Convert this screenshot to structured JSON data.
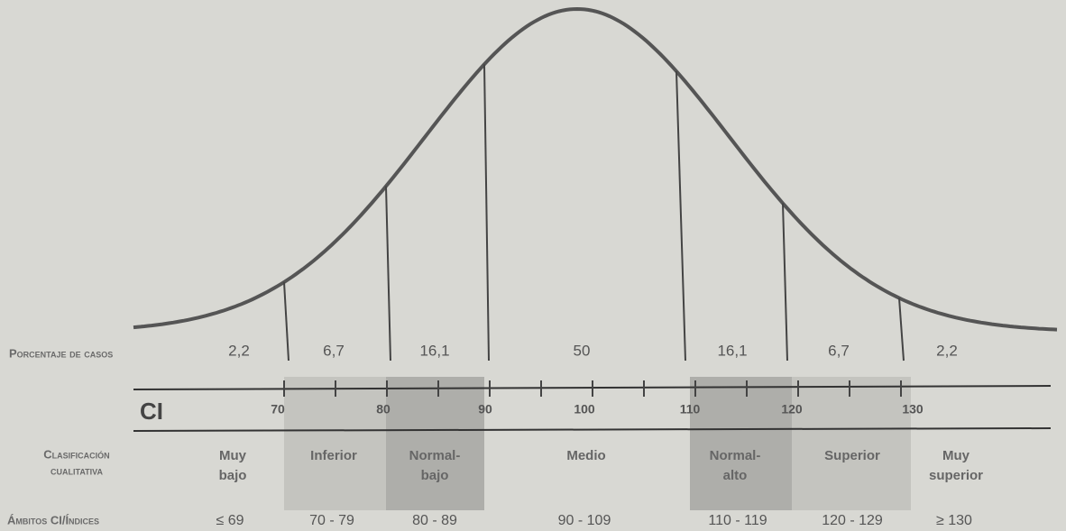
{
  "percent_row": {
    "label": "Porcentaje de casos",
    "values": [
      "2,2",
      "6,7",
      "16,1",
      "50",
      "16,1",
      "6,7",
      "2,2"
    ]
  },
  "ci_row": {
    "label": "CI",
    "ticks": [
      "70",
      "80",
      "90",
      "100",
      "110",
      "120",
      "130"
    ]
  },
  "classification_row": {
    "label": [
      "Clasificación",
      "cualitativa"
    ],
    "items": [
      [
        "Muy",
        "bajo"
      ],
      [
        "Inferior"
      ],
      [
        "Normal-",
        "bajo"
      ],
      [
        "Medio"
      ],
      [
        "Normal-",
        "alto"
      ],
      [
        "Superior"
      ],
      [
        "Muy",
        "superior"
      ]
    ]
  },
  "ranges_row": {
    "label": "Ámbitos CI/Índices",
    "items": [
      "≤ 69",
      "70 - 79",
      "80 - 89",
      "90 - 109",
      "110 - 119",
      "120 - 129",
      "≥ 130"
    ]
  }
}
